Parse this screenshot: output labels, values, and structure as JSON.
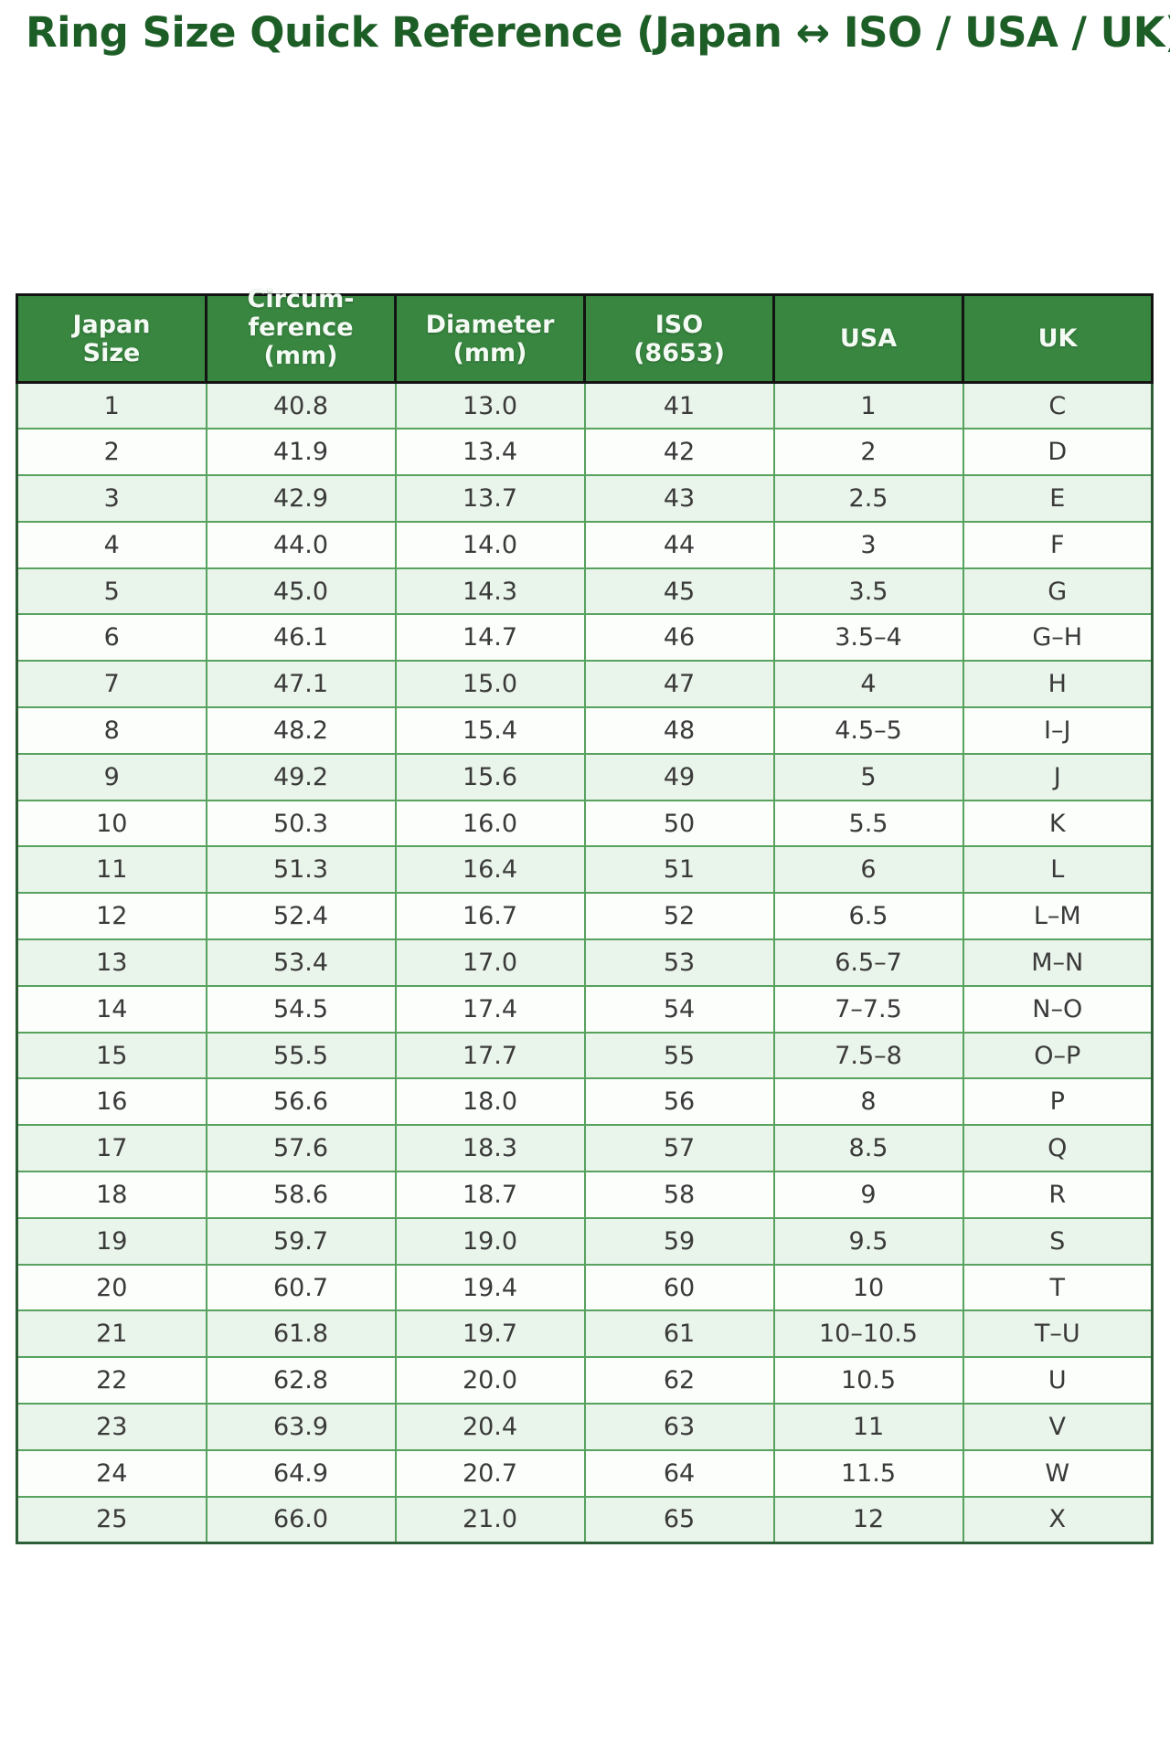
{
  "chart_data": {
    "type": "table",
    "title": "Ring Size Quick Reference (Japan ↔ ISO / USA / UK)",
    "columns": [
      "Japan Size",
      "Circum-ference (mm)",
      "Diameter (mm)",
      "ISO (8653)",
      "USA",
      "UK"
    ],
    "column_lines": [
      [
        "Japan",
        "Size"
      ],
      [
        "Circum-",
        "ference",
        "(mm)"
      ],
      [
        "Diameter",
        "(mm)"
      ],
      [
        "ISO",
        "(8653)"
      ],
      [
        "USA"
      ],
      [
        "UK"
      ]
    ],
    "rows": [
      [
        "1",
        "40.8",
        "13.0",
        "41",
        "1",
        "C"
      ],
      [
        "2",
        "41.9",
        "13.4",
        "42",
        "2",
        "D"
      ],
      [
        "3",
        "42.9",
        "13.7",
        "43",
        "2.5",
        "E"
      ],
      [
        "4",
        "44.0",
        "14.0",
        "44",
        "3",
        "F"
      ],
      [
        "5",
        "45.0",
        "14.3",
        "45",
        "3.5",
        "G"
      ],
      [
        "6",
        "46.1",
        "14.7",
        "46",
        "3.5–4",
        "G–H"
      ],
      [
        "7",
        "47.1",
        "15.0",
        "47",
        "4",
        "H"
      ],
      [
        "8",
        "48.2",
        "15.4",
        "48",
        "4.5–5",
        "I–J"
      ],
      [
        "9",
        "49.2",
        "15.6",
        "49",
        "5",
        "J"
      ],
      [
        "10",
        "50.3",
        "16.0",
        "50",
        "5.5",
        "K"
      ],
      [
        "11",
        "51.3",
        "16.4",
        "51",
        "6",
        "L"
      ],
      [
        "12",
        "52.4",
        "16.7",
        "52",
        "6.5",
        "L–M"
      ],
      [
        "13",
        "53.4",
        "17.0",
        "53",
        "6.5–7",
        "M–N"
      ],
      [
        "14",
        "54.5",
        "17.4",
        "54",
        "7–7.5",
        "N–O"
      ],
      [
        "15",
        "55.5",
        "17.7",
        "55",
        "7.5–8",
        "O–P"
      ],
      [
        "16",
        "56.6",
        "18.0",
        "56",
        "8",
        "P"
      ],
      [
        "17",
        "57.6",
        "18.3",
        "57",
        "8.5",
        "Q"
      ],
      [
        "18",
        "58.6",
        "18.7",
        "58",
        "9",
        "R"
      ],
      [
        "19",
        "59.7",
        "19.0",
        "59",
        "9.5",
        "S"
      ],
      [
        "20",
        "60.7",
        "19.4",
        "60",
        "10",
        "T"
      ],
      [
        "21",
        "61.8",
        "19.7",
        "61",
        "10–10.5",
        "T–U"
      ],
      [
        "22",
        "62.8",
        "20.0",
        "62",
        "10.5",
        "U"
      ],
      [
        "23",
        "63.9",
        "20.4",
        "63",
        "11",
        "V"
      ],
      [
        "24",
        "64.9",
        "20.7",
        "64",
        "11.5",
        "W"
      ],
      [
        "25",
        "66.0",
        "21.0",
        "65",
        "12",
        "X"
      ]
    ],
    "layout": {
      "striping": "odd rows light green, even rows white",
      "grid": "full cell borders",
      "legend": "none"
    }
  },
  "colors": {
    "title_text": "#1d5e27",
    "header_bg": "#388640",
    "header_text": "#f4faf4",
    "header_border": "#131313",
    "row_alt_bg": "#e9f4ea",
    "row_bg": "#fcfefc",
    "cell_border": "#57a25e",
    "outer_border": "#2e5e35",
    "cell_text": "#3a3a3a"
  }
}
